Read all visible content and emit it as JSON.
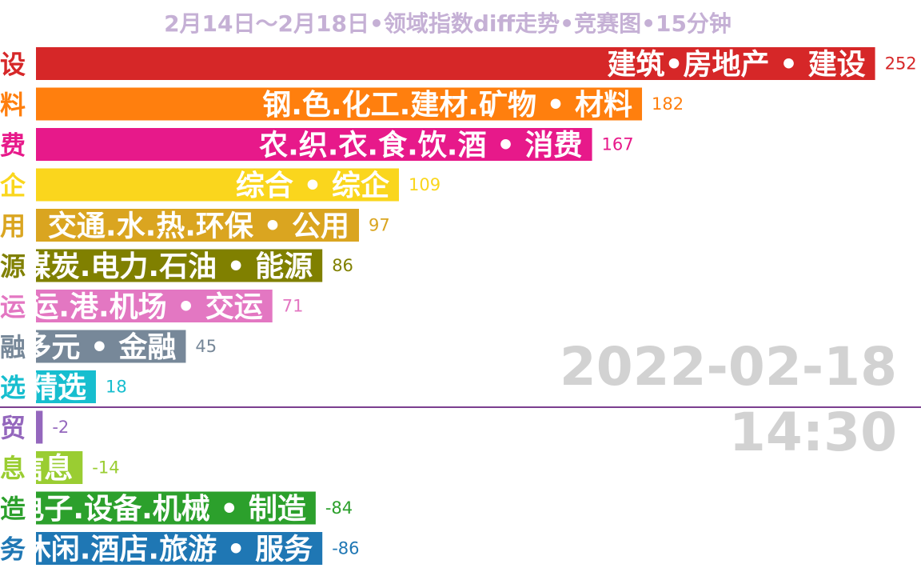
{
  "chart_data": {
    "type": "bar",
    "orientation": "horizontal",
    "title": "2月14日～2月18日•领域指数diff走势•竞赛图•15分钟",
    "date": "2022-02-18",
    "time": "14:30",
    "bars": [
      {
        "label": "建筑•房地产 • 建设",
        "tick": "设",
        "value": 252,
        "color": "#d62728"
      },
      {
        "label": "钢.色.化工.建材.矿物 • 材料",
        "tick": "料",
        "value": 182,
        "color": "#ff7f0e"
      },
      {
        "label": "农.织.衣.食.饮.酒 • 消费",
        "tick": "费",
        "value": 167,
        "color": "#e7198a"
      },
      {
        "label": "综合 • 综企",
        "tick": "企",
        "value": 109,
        "color": "#fad61d"
      },
      {
        "label": "交通.水.热.环保 • 公用",
        "tick": "用",
        "value": 97,
        "color": "#daa520"
      },
      {
        "label": "煤炭.电力.石油 • 能源",
        "tick": "源",
        "value": 86,
        "color": "#808000"
      },
      {
        "label": "航运.港.机场 • 交运",
        "tick": "运",
        "value": 71,
        "color": "#e377c2"
      },
      {
        "label": "多元 • 金融",
        "tick": "融",
        "value": 45,
        "color": "#778899"
      },
      {
        "label": "精选",
        "tick": "选",
        "value": 18,
        "color": "#17becf"
      },
      {
        "label": "贸易",
        "tick": "贸",
        "value": -2,
        "color": "#9467bd"
      },
      {
        "label": "信息",
        "tick": "息",
        "value": -14,
        "color": "#9acd32"
      },
      {
        "label": "电子.设备.机械 • 制造",
        "tick": "造",
        "value": -84,
        "color": "#2ca02c"
      },
      {
        "label": "休闲.酒店.旅游 • 服务",
        "tick": "务",
        "value": -86,
        "color": "#1f77b4"
      }
    ],
    "zero_line_color": "#7b3f8f"
  }
}
